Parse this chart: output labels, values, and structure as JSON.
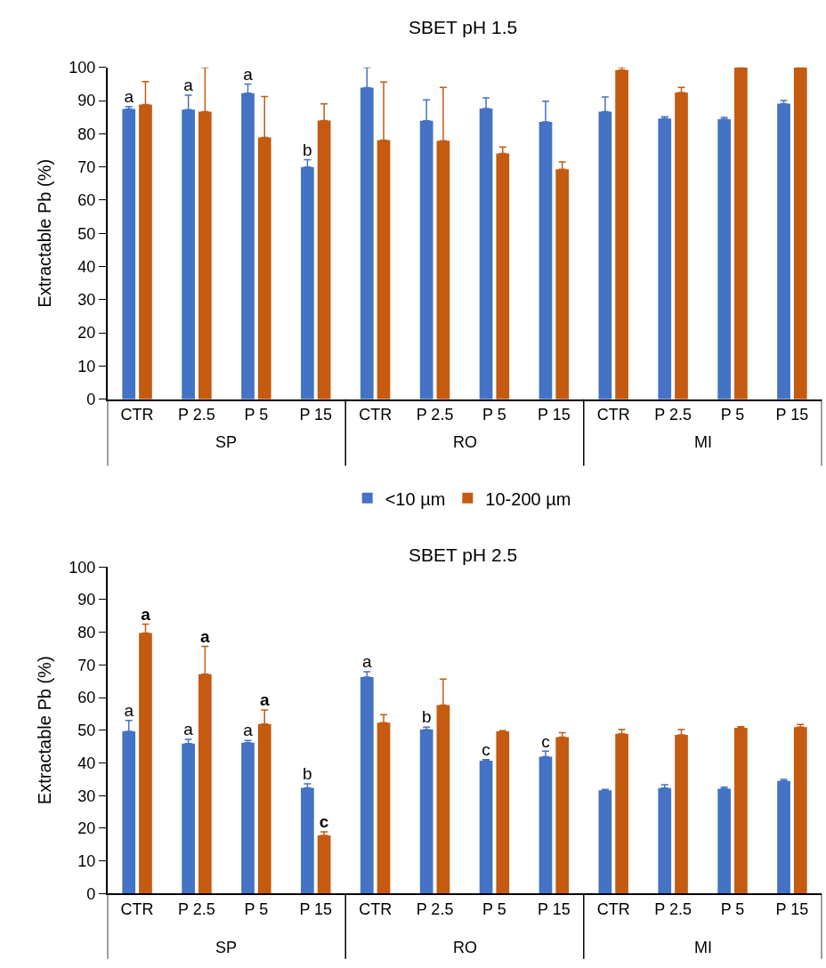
{
  "chart_data": [
    {
      "type": "bar",
      "title": "SBET pH 1.5",
      "ylabel": "Extractable Pb (%)",
      "categories": [
        "CTR",
        "P 2.5",
        "P 5",
        "P 15",
        "CTR",
        "P 2.5",
        "P 5",
        "P 15",
        "CTR",
        "P 2.5",
        "P 5",
        "P 15"
      ],
      "annotations": [
        "SP",
        "RO",
        "MI"
      ],
      "ylim": [
        0,
        100
      ],
      "yticks": [
        0,
        10,
        20,
        30,
        40,
        50,
        60,
        70,
        80,
        90,
        100
      ],
      "legend": "bottom",
      "series": [
        {
          "name": "<10 µm",
          "color": "#4472c4",
          "values": [
            87.5,
            87.3,
            92.2,
            70.0,
            93.9,
            83.9,
            87.6,
            83.6,
            86.7,
            84.6,
            84.4,
            89.1
          ],
          "errors": [
            [
              87.5,
              88.2
            ],
            [
              87.3,
              91.6
            ],
            [
              92.2,
              95.0
            ],
            [
              70.0,
              72.2
            ],
            [
              93.9,
              100
            ],
            [
              83.9,
              90.2
            ],
            [
              87.6,
              90.8
            ],
            [
              83.6,
              89.8
            ],
            [
              86.7,
              91.1
            ],
            [
              84.6,
              85.1
            ],
            [
              84.4,
              84.9
            ],
            [
              89.1,
              90.0
            ]
          ],
          "value_labels": [
            "a",
            "a",
            "a",
            "b",
            null,
            null,
            null,
            null,
            null,
            null,
            null,
            null
          ]
        },
        {
          "name": "10-200 µm",
          "color": "#c55a11",
          "values": [
            88.8,
            86.7,
            78.9,
            84.0,
            78.1,
            77.9,
            74.1,
            69.3,
            99.2,
            92.4,
            100,
            100
          ],
          "errors": [
            [
              88.8,
              95.7
            ],
            [
              86.7,
              100
            ],
            [
              78.9,
              91.2
            ],
            [
              84.0,
              89.0
            ],
            [
              78.1,
              95.6
            ],
            [
              77.9,
              94.0
            ],
            [
              74.1,
              76.0
            ],
            [
              69.3,
              71.5
            ],
            [
              99.2,
              100
            ],
            [
              92.4,
              94.0
            ],
            null,
            null
          ]
        }
      ]
    },
    {
      "type": "bar",
      "title": "SBET pH 2.5",
      "ylabel": "Extractable Pb (%)",
      "categories": [
        "CTR",
        "P 2.5",
        "P 5",
        "P 15",
        "CTR",
        "P 2.5",
        "P 5",
        "P 15",
        "CTR",
        "P 2.5",
        "P 5",
        "P 15"
      ],
      "annotations": [
        "SP",
        "RO",
        "MI"
      ],
      "ylim": [
        0,
        100
      ],
      "yticks": [
        0,
        10,
        20,
        30,
        40,
        50,
        60,
        70,
        80,
        90,
        100
      ],
      "series": [
        {
          "color": "#4472c4",
          "values": [
            49.7,
            45.9,
            46.2,
            32.4,
            66.3,
            50.2,
            40.7,
            41.9,
            31.6,
            32.3,
            32.1,
            34.5
          ],
          "errors": [
            [
              49.7,
              53.0
            ],
            [
              45.9,
              47.2
            ],
            [
              46.2,
              46.9
            ],
            [
              32.4,
              33.6
            ],
            [
              66.3,
              67.9
            ],
            [
              50.2,
              51.0
            ],
            [
              40.7,
              41.0
            ],
            [
              41.9,
              43.6
            ],
            [
              31.6,
              31.9
            ],
            [
              32.3,
              33.3
            ],
            [
              32.1,
              32.6
            ],
            [
              34.5,
              35.0
            ]
          ],
          "value_labels": [
            "a",
            "a",
            "a",
            "b",
            "a",
            "b",
            "c",
            "c",
            null,
            null,
            null,
            null
          ]
        },
        {
          "color": "#c55a11",
          "values": [
            79.8,
            67.2,
            51.9,
            17.8,
            52.3,
            57.7,
            49.7,
            47.9,
            48.9,
            48.6,
            50.8,
            51.0
          ],
          "errors": [
            [
              79.8,
              82.5
            ],
            [
              67.2,
              75.7
            ],
            [
              51.9,
              56.2
            ],
            [
              17.8,
              18.9
            ],
            [
              52.3,
              54.8
            ],
            [
              57.7,
              65.7
            ],
            [
              49.7,
              49.9
            ],
            [
              47.9,
              49.3
            ],
            [
              48.9,
              50.2
            ],
            [
              48.6,
              50.2
            ],
            [
              50.8,
              51.1
            ],
            [
              51.0,
              51.8
            ]
          ],
          "value_labels": [
            "a",
            "a",
            "a",
            "c",
            null,
            null,
            null,
            null,
            null,
            null,
            null,
            null
          ]
        }
      ]
    }
  ]
}
